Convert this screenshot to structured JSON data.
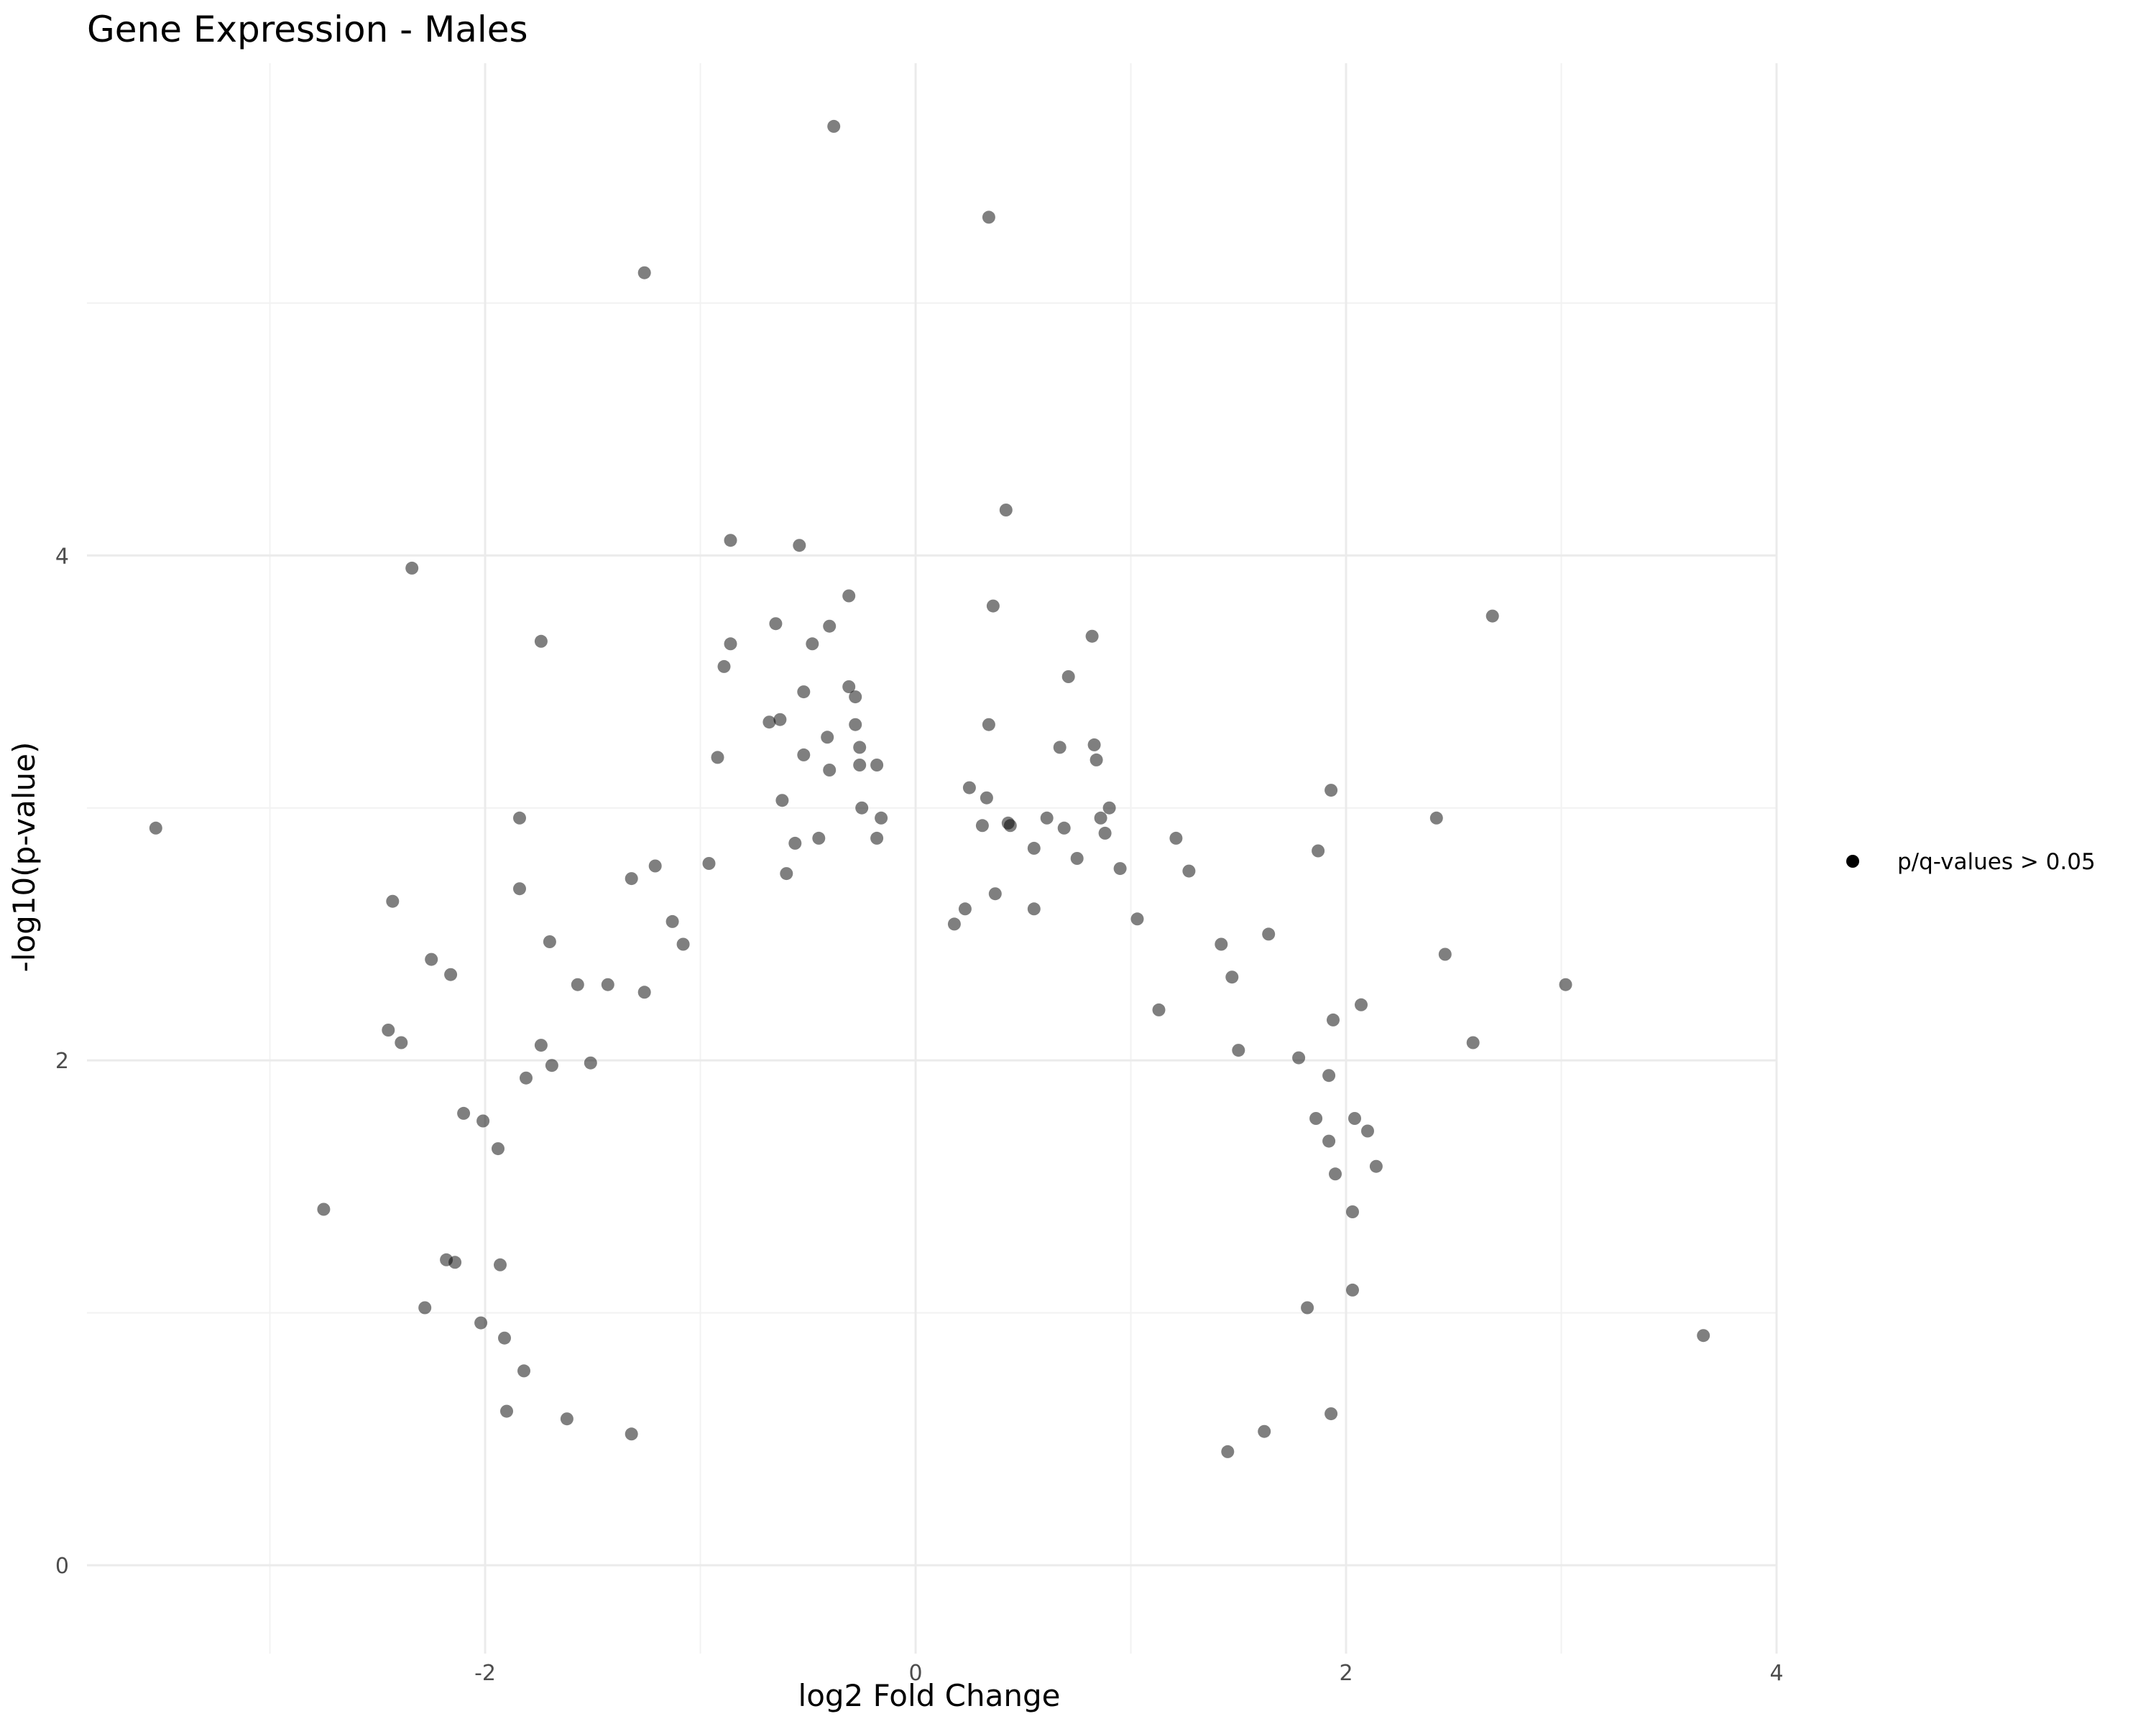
{
  "chart_data": {
    "type": "scatter",
    "title": "Gene Expression - Males",
    "xlabel": "log2 Fold Change",
    "ylabel": "-log10(p-value)",
    "xlim": [
      -3.85,
      4.0
    ],
    "ylim": [
      -0.35,
      5.95
    ],
    "x_ticks": [
      -2,
      0,
      2,
      4
    ],
    "y_ticks": [
      0,
      2,
      4
    ],
    "grid": true,
    "legend_position": "right",
    "series": [
      {
        "name": "p/q-values > 0.05",
        "color": "#000000",
        "opacity": 0.5,
        "points": [
          [
            -0.38,
            5.7
          ],
          [
            0.34,
            5.34
          ],
          [
            -1.26,
            5.12
          ],
          [
            0.42,
            4.18
          ],
          [
            -0.86,
            4.06
          ],
          [
            -0.54,
            4.04
          ],
          [
            -2.34,
            3.95
          ],
          [
            -0.31,
            3.84
          ],
          [
            0.36,
            3.8
          ],
          [
            2.68,
            3.76
          ],
          [
            -0.65,
            3.73
          ],
          [
            -0.4,
            3.72
          ],
          [
            -1.74,
            3.66
          ],
          [
            -0.86,
            3.65
          ],
          [
            -0.48,
            3.65
          ],
          [
            0.82,
            3.68
          ],
          [
            -0.89,
            3.56
          ],
          [
            0.71,
            3.52
          ],
          [
            -0.52,
            3.46
          ],
          [
            -0.31,
            3.48
          ],
          [
            -0.28,
            3.44
          ],
          [
            -0.68,
            3.34
          ],
          [
            -0.63,
            3.35
          ],
          [
            -0.28,
            3.33
          ],
          [
            0.34,
            3.33
          ],
          [
            -0.41,
            3.28
          ],
          [
            -0.26,
            3.24
          ],
          [
            -0.52,
            3.21
          ],
          [
            0.67,
            3.24
          ],
          [
            0.83,
            3.25
          ],
          [
            -0.92,
            3.2
          ],
          [
            -0.26,
            3.17
          ],
          [
            -0.18,
            3.17
          ],
          [
            0.84,
            3.19
          ],
          [
            -0.4,
            3.15
          ],
          [
            0.25,
            3.08
          ],
          [
            1.93,
            3.07
          ],
          [
            0.33,
            3.04
          ],
          [
            -0.62,
            3.03
          ],
          [
            -0.25,
            3.0
          ],
          [
            0.9,
            3.0
          ],
          [
            -3.53,
            2.92
          ],
          [
            -1.84,
            2.96
          ],
          [
            -0.16,
            2.96
          ],
          [
            0.43,
            2.94
          ],
          [
            0.61,
            2.96
          ],
          [
            0.86,
            2.96
          ],
          [
            2.42,
            2.96
          ],
          [
            0.31,
            2.93
          ],
          [
            0.44,
            2.93
          ],
          [
            0.69,
            2.92
          ],
          [
            0.88,
            2.9
          ],
          [
            -0.18,
            2.88
          ],
          [
            1.21,
            2.88
          ],
          [
            1.87,
            2.83
          ],
          [
            -0.56,
            2.86
          ],
          [
            -0.45,
            2.88
          ],
          [
            0.55,
            2.84
          ],
          [
            -0.96,
            2.78
          ],
          [
            -1.21,
            2.77
          ],
          [
            0.75,
            2.8
          ],
          [
            -0.6,
            2.74
          ],
          [
            1.27,
            2.75
          ],
          [
            0.95,
            2.76
          ],
          [
            -1.84,
            2.68
          ],
          [
            -1.32,
            2.72
          ],
          [
            0.37,
            2.66
          ],
          [
            -2.43,
            2.63
          ],
          [
            0.23,
            2.6
          ],
          [
            0.55,
            2.6
          ],
          [
            1.03,
            2.56
          ],
          [
            -1.13,
            2.55
          ],
          [
            0.18,
            2.54
          ],
          [
            1.64,
            2.5
          ],
          [
            -1.7,
            2.47
          ],
          [
            -1.08,
            2.46
          ],
          [
            1.42,
            2.46
          ],
          [
            2.46,
            2.42
          ],
          [
            -2.25,
            2.4
          ],
          [
            1.47,
            2.33
          ],
          [
            -2.16,
            2.34
          ],
          [
            -1.43,
            2.3
          ],
          [
            -1.57,
            2.3
          ],
          [
            3.02,
            2.3
          ],
          [
            -1.26,
            2.27
          ],
          [
            1.13,
            2.2
          ],
          [
            2.07,
            2.22
          ],
          [
            1.94,
            2.16
          ],
          [
            -2.45,
            2.12
          ],
          [
            -2.39,
            2.07
          ],
          [
            2.59,
            2.07
          ],
          [
            1.5,
            2.04
          ],
          [
            -1.74,
            2.06
          ],
          [
            -1.51,
            1.99
          ],
          [
            -1.69,
            1.98
          ],
          [
            1.78,
            2.01
          ],
          [
            -2.1,
            1.79
          ],
          [
            -2.01,
            1.76
          ],
          [
            1.86,
            1.77
          ],
          [
            1.92,
            1.94
          ],
          [
            -1.81,
            1.93
          ],
          [
            2.04,
            1.77
          ],
          [
            2.1,
            1.72
          ],
          [
            -1.94,
            1.65
          ],
          [
            1.92,
            1.68
          ],
          [
            2.14,
            1.58
          ],
          [
            -2.75,
            1.41
          ],
          [
            1.95,
            1.55
          ],
          [
            2.03,
            1.4
          ],
          [
            -2.18,
            1.21
          ],
          [
            -2.14,
            1.2
          ],
          [
            -1.93,
            1.19
          ],
          [
            -2.28,
            1.02
          ],
          [
            -2.02,
            0.96
          ],
          [
            2.03,
            1.09
          ],
          [
            1.82,
            1.02
          ],
          [
            -1.91,
            0.9
          ],
          [
            -1.82,
            0.77
          ],
          [
            3.66,
            0.91
          ],
          [
            -1.9,
            0.61
          ],
          [
            1.93,
            0.6
          ],
          [
            -1.62,
            0.58
          ],
          [
            1.45,
            0.45
          ],
          [
            1.62,
            0.53
          ],
          [
            -1.32,
            0.52
          ]
        ]
      }
    ]
  }
}
